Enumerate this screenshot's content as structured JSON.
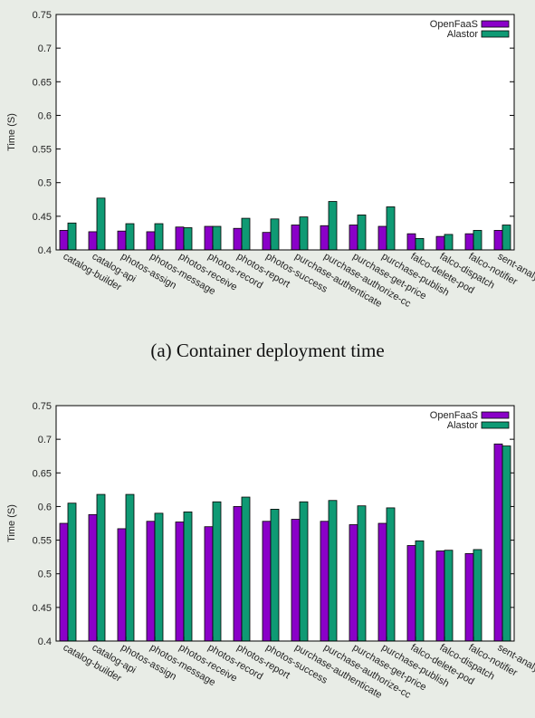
{
  "colors": {
    "openfaas": "#8a00c8",
    "alastor": "#0f9a74",
    "frame": "#000000",
    "text": "#222222",
    "background": "#e8ece6"
  },
  "chart_data": [
    {
      "type": "bar",
      "caption": "(a) Container deployment time",
      "ylabel": "Time (S)",
      "ylim": [
        0.4,
        0.75
      ],
      "yticks": [
        "0.4",
        "0.45",
        "0.5",
        "0.55",
        "0.6",
        "0.65",
        "0.7",
        "0.75"
      ],
      "legend_position": "top-right",
      "categories": [
        "catalog-builder",
        "catalog-api",
        "photos-assign",
        "photos-message",
        "photos-receive",
        "photos-record",
        "photos-report",
        "photos-success",
        "purchase-authenticate",
        "purchase-authorize-cc",
        "purchase-get-price",
        "purchase-publish",
        "falco-delete-pod",
        "falco-dispatch",
        "falco-notifier",
        "sent-analysis"
      ],
      "series": [
        {
          "name": "OpenFaaS",
          "values": [
            0.429,
            0.427,
            0.428,
            0.427,
            0.434,
            0.435,
            0.432,
            0.426,
            0.437,
            0.436,
            0.437,
            0.435,
            0.424,
            0.42,
            0.424,
            0.429
          ]
        },
        {
          "name": "Alastor",
          "values": [
            0.44,
            0.477,
            0.439,
            0.439,
            0.433,
            0.435,
            0.447,
            0.446,
            0.449,
            0.472,
            0.452,
            0.464,
            0.417,
            0.423,
            0.429,
            0.437
          ]
        }
      ]
    },
    {
      "type": "bar",
      "caption": "",
      "ylabel": "Time (S)",
      "ylim": [
        0.4,
        0.75
      ],
      "yticks": [
        "0.4",
        "0.45",
        "0.5",
        "0.55",
        "0.6",
        "0.65",
        "0.7",
        "0.75"
      ],
      "legend_position": "top-right",
      "categories": [
        "catalog-builder",
        "catalog-api",
        "photos-assign",
        "photos-message",
        "photos-receive",
        "photos-record",
        "photos-report",
        "photos-success",
        "purchase-authenticate",
        "purchase-authorize-cc",
        "purchase-get-price",
        "purchase-publish",
        "falco-delete-pod",
        "falco-dispatch",
        "falco-notifier",
        "sent-analysis"
      ],
      "series": [
        {
          "name": "OpenFaaS",
          "values": [
            0.575,
            0.588,
            0.567,
            0.578,
            0.577,
            0.57,
            0.6,
            0.578,
            0.581,
            0.578,
            0.573,
            0.575,
            0.542,
            0.534,
            0.53,
            0.693
          ]
        },
        {
          "name": "Alastor",
          "values": [
            0.605,
            0.618,
            0.618,
            0.59,
            0.592,
            0.607,
            0.614,
            0.596,
            0.607,
            0.609,
            0.601,
            0.598,
            0.549,
            0.535,
            0.536,
            0.69
          ]
        }
      ]
    }
  ]
}
